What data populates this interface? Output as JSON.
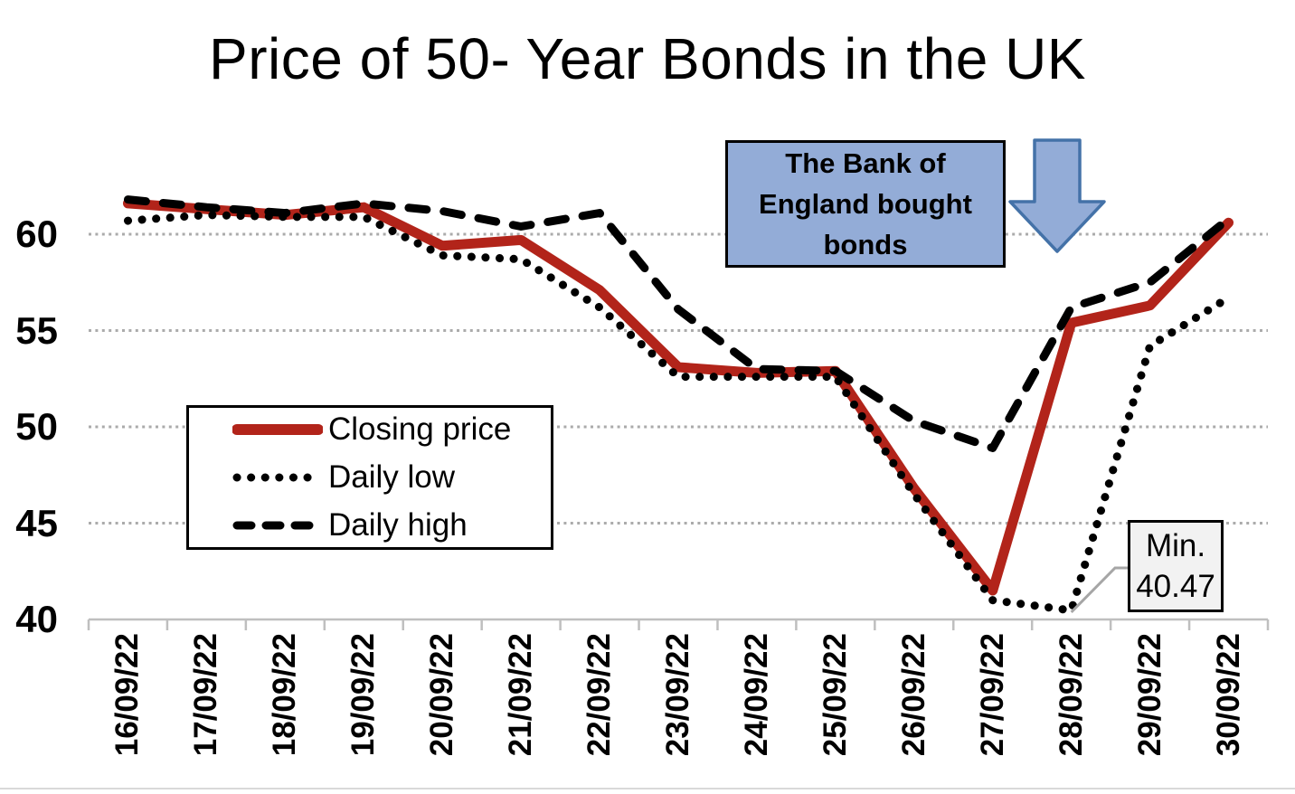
{
  "title": "Price of 50- Year Bonds in the UK",
  "chart_data": {
    "type": "line",
    "title": "Price of 50- Year Bonds in the UK",
    "xlabel": "",
    "ylabel": "",
    "categories": [
      "16/09/22",
      "17/09/22",
      "18/09/22",
      "19/09/22",
      "20/09/22",
      "21/09/22",
      "22/09/22",
      "23/09/22",
      "24/09/22",
      "25/09/22",
      "26/09/22",
      "27/09/22",
      "28/09/22",
      "29/09/22",
      "30/09/22"
    ],
    "series": [
      {
        "name": "Closing price",
        "style": "solid",
        "color": "#b2241a",
        "values": [
          61.6,
          61.3,
          61.0,
          61.4,
          59.4,
          59.7,
          57.1,
          53.1,
          52.8,
          52.9,
          46.8,
          41.5,
          55.4,
          56.3,
          60.6
        ]
      },
      {
        "name": "Daily low",
        "style": "dotted",
        "color": "#000000",
        "values": [
          60.7,
          61.0,
          60.9,
          60.9,
          58.9,
          58.7,
          56.2,
          52.6,
          52.6,
          52.6,
          46.5,
          41.0,
          40.47,
          54.2,
          56.7
        ]
      },
      {
        "name": "Daily high",
        "style": "dashed",
        "color": "#000000",
        "values": [
          61.8,
          61.4,
          61.1,
          61.6,
          61.2,
          60.4,
          61.1,
          56.1,
          53.0,
          52.9,
          50.3,
          48.9,
          56.2,
          57.5,
          60.8
        ]
      }
    ],
    "y_ticks": [
      40,
      45,
      50,
      55,
      60
    ],
    "ylim": [
      40,
      62
    ],
    "grid": "horizontal-dotted",
    "legend_position": "middle-left",
    "grid_color": "#ababab",
    "axis_color": "#bfbfbf"
  },
  "annotations": {
    "callout_box": {
      "text": "The Bank of\nEngland bought\nbonds",
      "fill": "#93acd7",
      "border": "#000000"
    },
    "arrow": {
      "name": "down-arrow",
      "fill": "#93acd7",
      "border": "#4472a8"
    },
    "min_callout": {
      "label": "Min.",
      "value": "40.47",
      "fill": "#f2f2f2",
      "border": "#000000",
      "leader_color": "#a6a6a6",
      "series": "Daily low"
    }
  }
}
